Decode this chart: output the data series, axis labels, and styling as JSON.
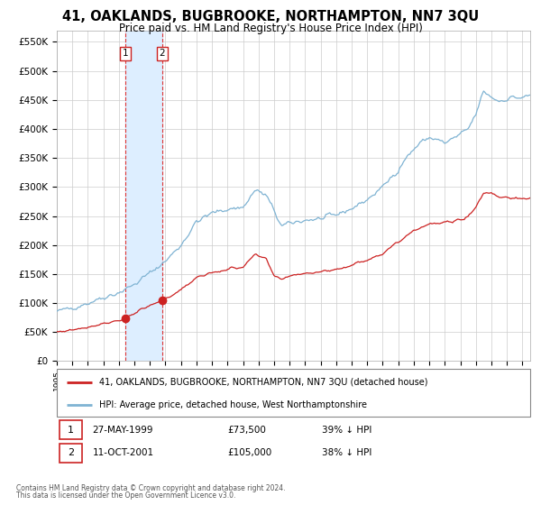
{
  "title": "41, OAKLANDS, BUGBROOKE, NORTHAMPTON, NN7 3QU",
  "subtitle": "Price paid vs. HM Land Registry's House Price Index (HPI)",
  "title_fontsize": 10.5,
  "subtitle_fontsize": 8.5,
  "background_color": "#ffffff",
  "plot_bg_color": "#ffffff",
  "grid_color": "#cccccc",
  "xmin": 1995.0,
  "xmax": 2025.5,
  "ymin": 0,
  "ymax": 570000,
  "yticks": [
    0,
    50000,
    100000,
    150000,
    200000,
    250000,
    300000,
    350000,
    400000,
    450000,
    500000,
    550000
  ],
  "ytick_labels": [
    "£0",
    "£50K",
    "£100K",
    "£150K",
    "£200K",
    "£250K",
    "£300K",
    "£350K",
    "£400K",
    "£450K",
    "£500K",
    "£550K"
  ],
  "purchase1_date": 1999.4,
  "purchase1_price": 73500,
  "purchase2_date": 2001.78,
  "purchase2_price": 105000,
  "vline1": 1999.4,
  "vline2": 2001.78,
  "shade_color": "#ddeeff",
  "vline_color": "#dd3333",
  "hpi_color": "#7fb3d3",
  "price_color": "#cc2222",
  "marker_color": "#cc2222",
  "legend_label_price": "41, OAKLANDS, BUGBROOKE, NORTHAMPTON, NN7 3QU (detached house)",
  "legend_label_hpi": "HPI: Average price, detached house, West Northamptonshire",
  "table_row1": [
    "1",
    "27-MAY-1999",
    "£73,500",
    "39% ↓ HPI"
  ],
  "table_row2": [
    "2",
    "11-OCT-2001",
    "£105,000",
    "38% ↓ HPI"
  ],
  "footer": "Contains HM Land Registry data © Crown copyright and database right 2024.\nThis data is licensed under the Open Government Licence v3.0."
}
